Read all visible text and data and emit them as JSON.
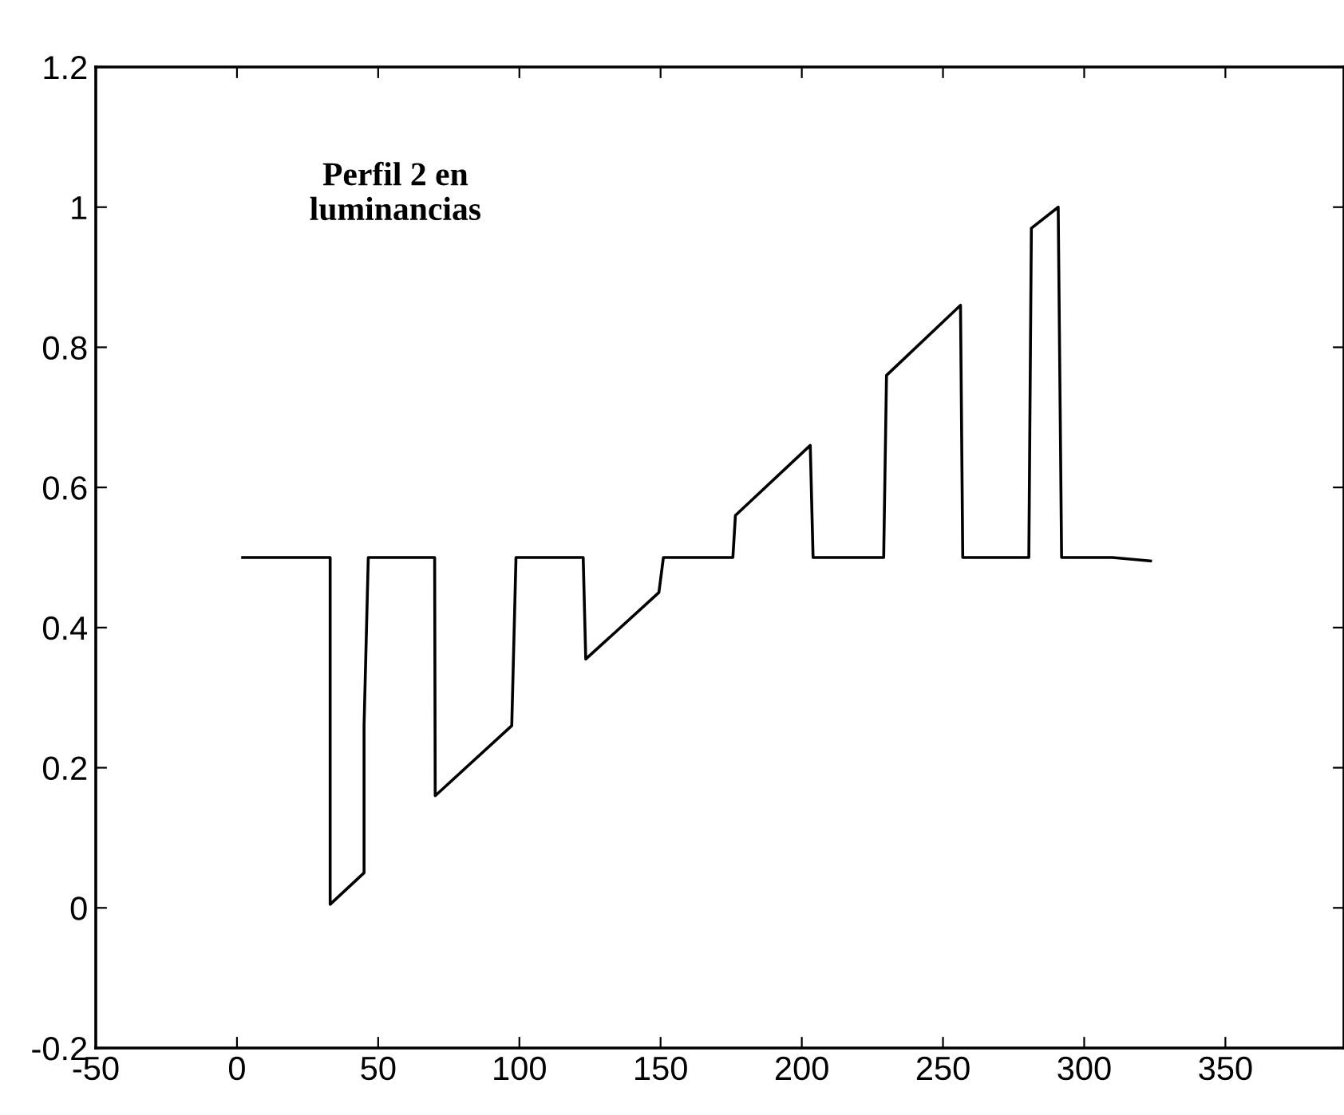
{
  "chart_data": {
    "type": "line",
    "annotations": [
      "Perfil 2 en\nluminancias"
    ],
    "series": [
      {
        "color": "#000000",
        "x": [
          2,
          33,
          33,
          45,
          45,
          46.5,
          70,
          70.2,
          97.3,
          98.8,
          122.6,
          123.5,
          149.4,
          151,
          175.6,
          176.5,
          203,
          204,
          229,
          230,
          256.2,
          257,
          280.4,
          281.3,
          290.8,
          292,
          310,
          323.5
        ],
        "values": [
          0.5,
          0.5,
          0.005,
          0.05,
          0.26,
          0.5,
          0.5,
          0.16,
          0.26,
          0.5,
          0.5,
          0.355,
          0.45,
          0.5,
          0.5,
          0.56,
          0.66,
          0.5,
          0.5,
          0.76,
          0.86,
          0.5,
          0.5,
          0.97,
          1.0,
          0.5,
          0.5,
          0.495
        ]
      }
    ],
    "xlim": [
      -50,
      392
    ],
    "xticks": [
      -50,
      0,
      50,
      100,
      150,
      200,
      250,
      300,
      350
    ],
    "ylim": [
      -0.2,
      1.2
    ],
    "yticks": [
      -0.2,
      0,
      0.2,
      0.4,
      0.6,
      0.8,
      1,
      1.2
    ],
    "grid": false,
    "marker": "none",
    "line_style": "solid"
  }
}
